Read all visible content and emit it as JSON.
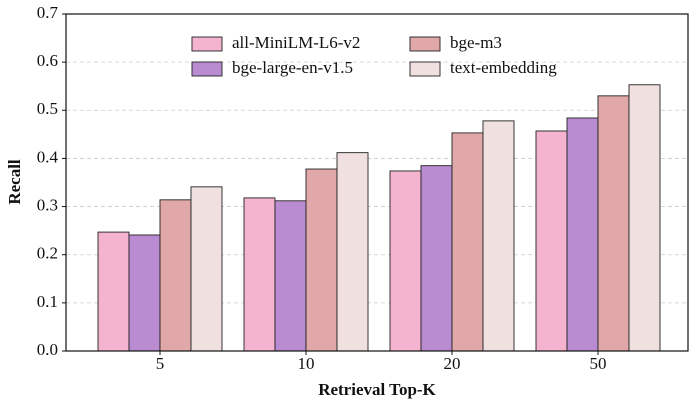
{
  "chart_data": {
    "type": "bar",
    "x_label": "Retrieval Top-K",
    "y_label": "Recall",
    "categories": [
      "5",
      "10",
      "20",
      "50"
    ],
    "series": [
      {
        "name": "all-MiniLM-L6-v2",
        "color": "#f4b3cf",
        "values": [
          0.247,
          0.318,
          0.374,
          0.457
        ]
      },
      {
        "name": "bge-large-en-v1.5",
        "color": "#b98bd0",
        "values": [
          0.241,
          0.312,
          0.385,
          0.484
        ]
      },
      {
        "name": "bge-m3",
        "color": "#e0a8a8",
        "values": [
          0.314,
          0.378,
          0.453,
          0.53
        ]
      },
      {
        "name": "text-embedding",
        "color": "#f0e0e0",
        "values": [
          0.341,
          0.412,
          0.478,
          0.553
        ]
      }
    ],
    "ylim": [
      0,
      0.7
    ],
    "yticks": [
      {
        "value": 0,
        "label": "0.0"
      },
      0.1,
      0.2,
      0.3,
      0.4,
      0.5,
      0.6,
      0.7
    ],
    "grid": true,
    "legend": "upper-center"
  }
}
